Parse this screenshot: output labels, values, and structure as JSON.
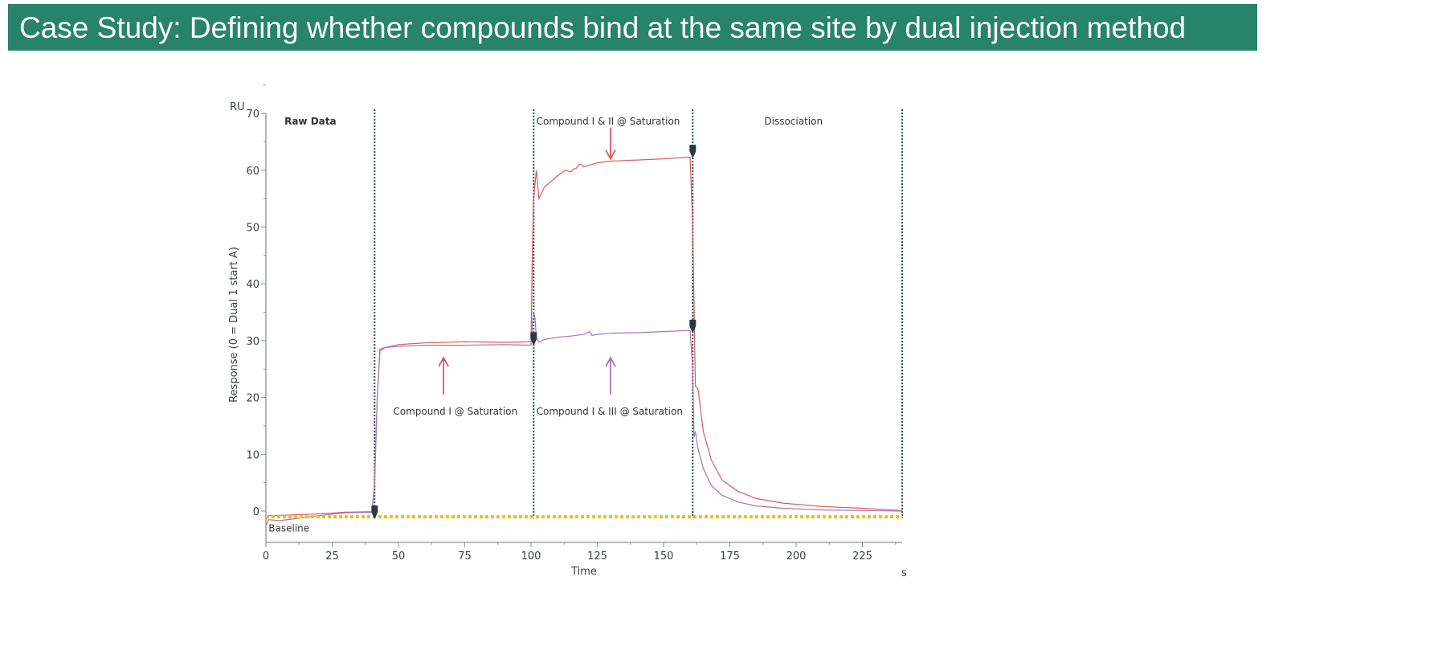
{
  "title": "Case Study: Defining whether compounds bind at the same site by dual injection method",
  "chart_data": {
    "type": "line",
    "title": "Raw Data",
    "xlabel": "Time",
    "xunit": "s",
    "ylabel": "Response (0 = Dual 1 start A)",
    "yunit": "RU",
    "xlim": [
      0,
      240
    ],
    "ylim": [
      -5.5,
      70
    ],
    "xticks": [
      0,
      25,
      50,
      75,
      100,
      125,
      150,
      175,
      200,
      225
    ],
    "yticks": [
      0,
      10,
      20,
      30,
      40,
      50,
      60,
      70
    ],
    "grid": false,
    "colors": {
      "red": "#e0585a",
      "purple": "#a873b8",
      "baseline": "#e8c020",
      "divider": "#1e4d3a",
      "marker": "#2b3a42"
    },
    "series": [
      {
        "name": "Compound I & II",
        "color": "red",
        "x": [
          0,
          1,
          10,
          20,
          30,
          40,
          41,
          42,
          43,
          45,
          50,
          60,
          75,
          90,
          100,
          100.5,
          101,
          102,
          103,
          105,
          110,
          113,
          115,
          116,
          117,
          118,
          119,
          120,
          125,
          130,
          140,
          150,
          160,
          161,
          162,
          163,
          165,
          168,
          172,
          178,
          185,
          195,
          210,
          225,
          240
        ],
        "y": [
          -1.5,
          -0.8,
          -0.7,
          -0.5,
          -0.2,
          -0.1,
          5,
          20,
          28.2,
          28.8,
          29.3,
          29.6,
          29.8,
          29.7,
          29.8,
          45,
          55,
          60,
          55,
          57,
          59,
          60,
          59.7,
          60.2,
          60.3,
          61,
          61,
          60.6,
          61.3,
          61.6,
          61.8,
          62,
          62.3,
          50,
          22,
          21.5,
          14,
          9,
          5.5,
          3.5,
          2.2,
          1.4,
          0.8,
          0.5,
          0.1
        ]
      },
      {
        "name": "Compound I & III",
        "color": "purple",
        "x": [
          0,
          1,
          5,
          10,
          20,
          30,
          40,
          41,
          42,
          43,
          45,
          50,
          60,
          75,
          90,
          100,
          100.5,
          101,
          101.5,
          102,
          103,
          105,
          110,
          115,
          120,
          122,
          123,
          125,
          130,
          140,
          150,
          160,
          161,
          161.5,
          162,
          163,
          165,
          168,
          172,
          178,
          185,
          195,
          210,
          225,
          240
        ],
        "y": [
          -2.5,
          -1.5,
          -1.7,
          -1.4,
          -0.8,
          -0.3,
          -0.2,
          5,
          20,
          28.5,
          28.8,
          29,
          29.2,
          29.2,
          29.3,
          29.2,
          33,
          35,
          34,
          30.5,
          29.7,
          30.2,
          30.6,
          30.8,
          31.1,
          31.6,
          30.9,
          31.1,
          31.3,
          31.4,
          31.6,
          31.8,
          25,
          13,
          14,
          11,
          7.5,
          4.5,
          2.8,
          1.6,
          0.9,
          0.5,
          0.2,
          0.1,
          0
        ]
      },
      {
        "name": "Baseline",
        "color": "baseline",
        "style": "dotted",
        "x": [
          0,
          240
        ],
        "y": [
          -1,
          -1
        ]
      }
    ],
    "dividers": [
      41,
      101,
      161,
      240
    ],
    "markers": [
      {
        "x": 41,
        "y": -1
      },
      {
        "x": 101,
        "y": 29.5
      },
      {
        "x": 161,
        "y": 62.5
      },
      {
        "x": 161,
        "y": 31.7
      }
    ],
    "annotations": [
      {
        "text": "Raw Data",
        "x": 7,
        "y": 68,
        "bold": true
      },
      {
        "text": "Compound I & II @ Saturation",
        "x": 102,
        "y": 68
      },
      {
        "text": "Dissociation",
        "x": 188,
        "y": 68
      },
      {
        "text": "Compound I @ Saturation",
        "x": 48,
        "y": 17
      },
      {
        "text": "Compound I & III @ Saturation",
        "x": 102,
        "y": 17
      },
      {
        "text": "Baseline",
        "x": 1,
        "y": -3.6
      }
    ],
    "arrows": [
      {
        "x": 67,
        "from": 20.5,
        "to": 27,
        "color": "red"
      },
      {
        "x": 130,
        "from": 20.5,
        "to": 27,
        "color": "purple"
      },
      {
        "x": 130,
        "from": 67.5,
        "to": 62,
        "color": "red"
      }
    ]
  }
}
